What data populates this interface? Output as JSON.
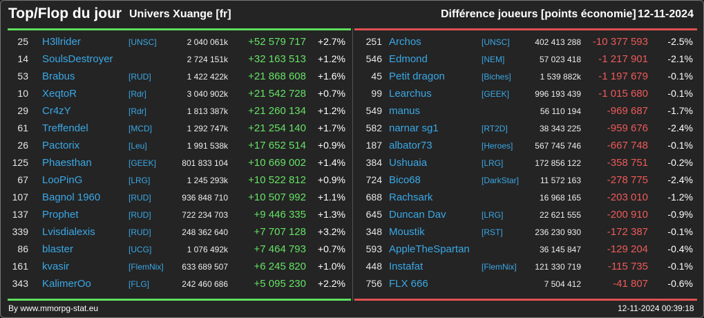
{
  "header": {
    "title": "Top/Flop du jour",
    "universe": "Univers Xuange [fr]",
    "metric": "Différence joueurs [points économie]",
    "date": "12-11-2024"
  },
  "colors": {
    "top_accent": "#5ee05e",
    "flop_accent": "#e05252",
    "name": "#3aa8e6",
    "positive": "#66e266",
    "negative": "#ee5a5a"
  },
  "top": [
    {
      "rank": "25",
      "name": "H3llrider",
      "alliance": "[UNSC]",
      "score": "2 040 061k",
      "diff": "+52 579 717",
      "pct": "+2.7%"
    },
    {
      "rank": "14",
      "name": "SoulsDestroyer",
      "alliance": "",
      "score": "2 724 151k",
      "diff": "+32 163 513",
      "pct": "+1.2%"
    },
    {
      "rank": "53",
      "name": "Brabus",
      "alliance": "[RUD]",
      "score": "1 422 422k",
      "diff": "+21 868 608",
      "pct": "+1.6%"
    },
    {
      "rank": "10",
      "name": "XeqtoR",
      "alliance": "[Rdr]",
      "score": "3 040 902k",
      "diff": "+21 542 728",
      "pct": "+0.7%"
    },
    {
      "rank": "29",
      "name": "Cr4zY",
      "alliance": "[Rdr]",
      "score": "1 813 387k",
      "diff": "+21 260 134",
      "pct": "+1.2%"
    },
    {
      "rank": "61",
      "name": "Treffendel",
      "alliance": "[MCD]",
      "score": "1 292 747k",
      "diff": "+21 254 140",
      "pct": "+1.7%"
    },
    {
      "rank": "26",
      "name": "Pactorix",
      "alliance": "[Leu]",
      "score": "1 991 538k",
      "diff": "+17 652 514",
      "pct": "+0.9%"
    },
    {
      "rank": "125",
      "name": "Phaesthan",
      "alliance": "[GEEK]",
      "score": "801 833 104",
      "diff": "+10 669 002",
      "pct": "+1.4%"
    },
    {
      "rank": "67",
      "name": "LooPinG",
      "alliance": "[LRG]",
      "score": "1 245 293k",
      "diff": "+10 522 812",
      "pct": "+0.9%"
    },
    {
      "rank": "107",
      "name": "Bagnol 1960",
      "alliance": "[RUD]",
      "score": "936 848 710",
      "diff": "+10 507 992",
      "pct": "+1.1%"
    },
    {
      "rank": "137",
      "name": "Prophet",
      "alliance": "[RUD]",
      "score": "722 234 703",
      "diff": "+9 446 335",
      "pct": "+1.3%"
    },
    {
      "rank": "339",
      "name": "Lvisdialexis",
      "alliance": "[RUD]",
      "score": "248 362 640",
      "diff": "+7 707 128",
      "pct": "+3.2%"
    },
    {
      "rank": "86",
      "name": "blaster",
      "alliance": "[UCG]",
      "score": "1 076 492k",
      "diff": "+7 464 793",
      "pct": "+0.7%"
    },
    {
      "rank": "161",
      "name": "kvasir",
      "alliance": "[FlemNix]",
      "score": "633 689 507",
      "diff": "+6 245 820",
      "pct": "+1.0%"
    },
    {
      "rank": "343",
      "name": "KalimerOo",
      "alliance": "[FLG]",
      "score": "242 460 686",
      "diff": "+5 095 230",
      "pct": "+2.2%"
    }
  ],
  "flop": [
    {
      "rank": "251",
      "name": "Archos",
      "alliance": "[UNSC]",
      "score": "402 413 288",
      "diff": "-10 377 593",
      "pct": "-2.5%"
    },
    {
      "rank": "546",
      "name": "Edmond",
      "alliance": "[NEM]",
      "score": "57 023 418",
      "diff": "-1 217 901",
      "pct": "-2.1%"
    },
    {
      "rank": "45",
      "name": "Petit dragon",
      "alliance": "[Biches]",
      "score": "1 539 882k",
      "diff": "-1 197 679",
      "pct": "-0.1%"
    },
    {
      "rank": "99",
      "name": "Learchus",
      "alliance": "[GEEK]",
      "score": "996 193 439",
      "diff": "-1 015 680",
      "pct": "-0.1%"
    },
    {
      "rank": "549",
      "name": "manus",
      "alliance": "",
      "score": "56 110 194",
      "diff": "-969 687",
      "pct": "-1.7%"
    },
    {
      "rank": "582",
      "name": "narnar sg1",
      "alliance": "[RT2D]",
      "score": "38 343 225",
      "diff": "-959 676",
      "pct": "-2.4%"
    },
    {
      "rank": "187",
      "name": "albator73",
      "alliance": "[Heroes]",
      "score": "567 745 746",
      "diff": "-667 748",
      "pct": "-0.1%"
    },
    {
      "rank": "384",
      "name": "Ushuaia",
      "alliance": "[LRG]",
      "score": "172 856 122",
      "diff": "-358 751",
      "pct": "-0.2%"
    },
    {
      "rank": "724",
      "name": "Bico68",
      "alliance": "[DarkStar]",
      "score": "11 572 163",
      "diff": "-278 775",
      "pct": "-2.4%"
    },
    {
      "rank": "688",
      "name": "Rachsark",
      "alliance": "",
      "score": "16 968 165",
      "diff": "-203 010",
      "pct": "-1.2%"
    },
    {
      "rank": "645",
      "name": "Duncan Dav",
      "alliance": "[LRG]",
      "score": "22 621 555",
      "diff": "-200 910",
      "pct": "-0.9%"
    },
    {
      "rank": "348",
      "name": "Moustik",
      "alliance": "[RST]",
      "score": "236 230 930",
      "diff": "-172 387",
      "pct": "-0.1%"
    },
    {
      "rank": "593",
      "name": "AppleTheSpartan",
      "alliance": "",
      "score": "36 145 847",
      "diff": "-129 204",
      "pct": "-0.4%"
    },
    {
      "rank": "448",
      "name": "Instafat",
      "alliance": "[FlemNix]",
      "score": "121 330 719",
      "diff": "-115 735",
      "pct": "-0.1%"
    },
    {
      "rank": "756",
      "name": "FLX 666",
      "alliance": "",
      "score": "7 504 412",
      "diff": "-41 807",
      "pct": "-0.6%"
    }
  ],
  "footer": {
    "credit": "By www.mmorpg-stat.eu",
    "timestamp": "12-11-2024 00:39:18"
  }
}
